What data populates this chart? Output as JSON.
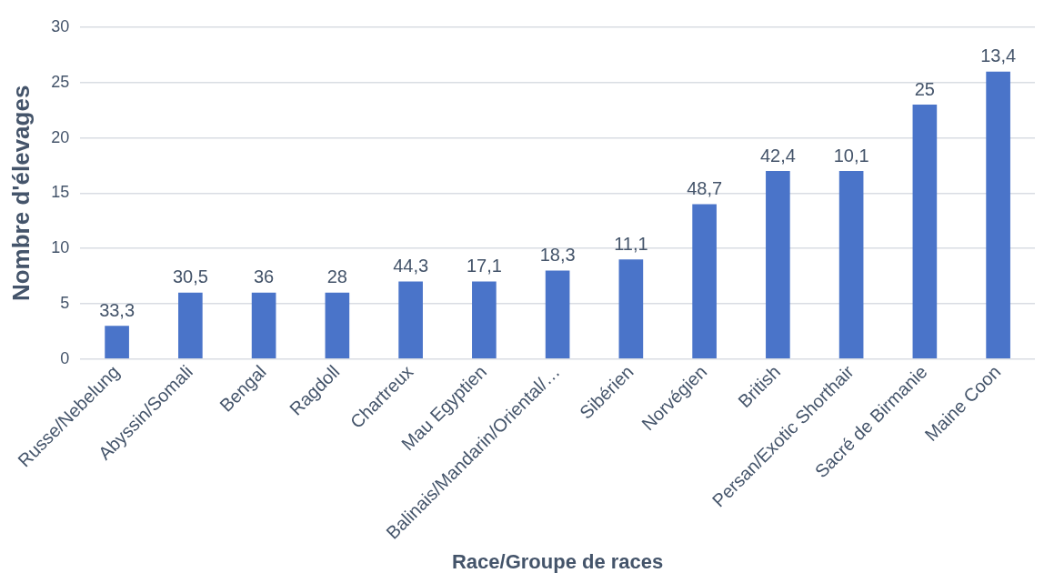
{
  "chart_data": {
    "type": "bar",
    "xlabel": "Race/Groupe de races",
    "ylabel": "Nombre d'élevages",
    "categories": [
      "Russe/Nebelung",
      "Abyssin/Somali",
      "Bengal",
      "Ragdoll",
      "Chartreux",
      "Mau Egyptien",
      "Balinais/Mandarin/Oriental/…",
      "Sibérien",
      "Norvégien",
      "British",
      "Persan/Exotic Shorthair",
      "Sacré de Birmanie",
      "Maine Coon"
    ],
    "values": [
      3,
      6,
      6,
      6,
      7,
      7,
      8,
      9,
      14,
      17,
      17,
      23,
      26
    ],
    "annotations": [
      {
        "text": "33,3",
        "x": "Russe/Nebelung",
        "y": 3
      },
      {
        "text": "30,5",
        "x": "Abyssin/Somali",
        "y": 6
      },
      {
        "text": "36",
        "x": "Bengal",
        "y": 6
      },
      {
        "text": "28",
        "x": "Ragdoll",
        "y": 6
      },
      {
        "text": "44,3",
        "x": "Chartreux",
        "y": 7
      },
      {
        "text": "17,1",
        "x": "Mau Egyptien",
        "y": 7
      },
      {
        "text": "18,3",
        "x": "Balinais/Mandarin/Oriental/…",
        "y": 8
      },
      {
        "text": "11,1",
        "x": "Sibérien",
        "y": 9
      },
      {
        "text": "48,7",
        "x": "Norvégien",
        "y": 14
      },
      {
        "text": "42,4",
        "x": "British",
        "y": 17
      },
      {
        "text": "10,1",
        "x": "Persan/Exotic Shorthair",
        "y": 17
      },
      {
        "text": "25",
        "x": "Sacré de Birmanie",
        "y": 23
      },
      {
        "text": "13,4",
        "x": "Maine Coon",
        "y": 26
      }
    ],
    "color": "#4a74c9",
    "ylim": [
      0,
      30
    ],
    "yticks": [
      0,
      5,
      10,
      15,
      20,
      25,
      30
    ],
    "grid": "y",
    "legend": false
  }
}
